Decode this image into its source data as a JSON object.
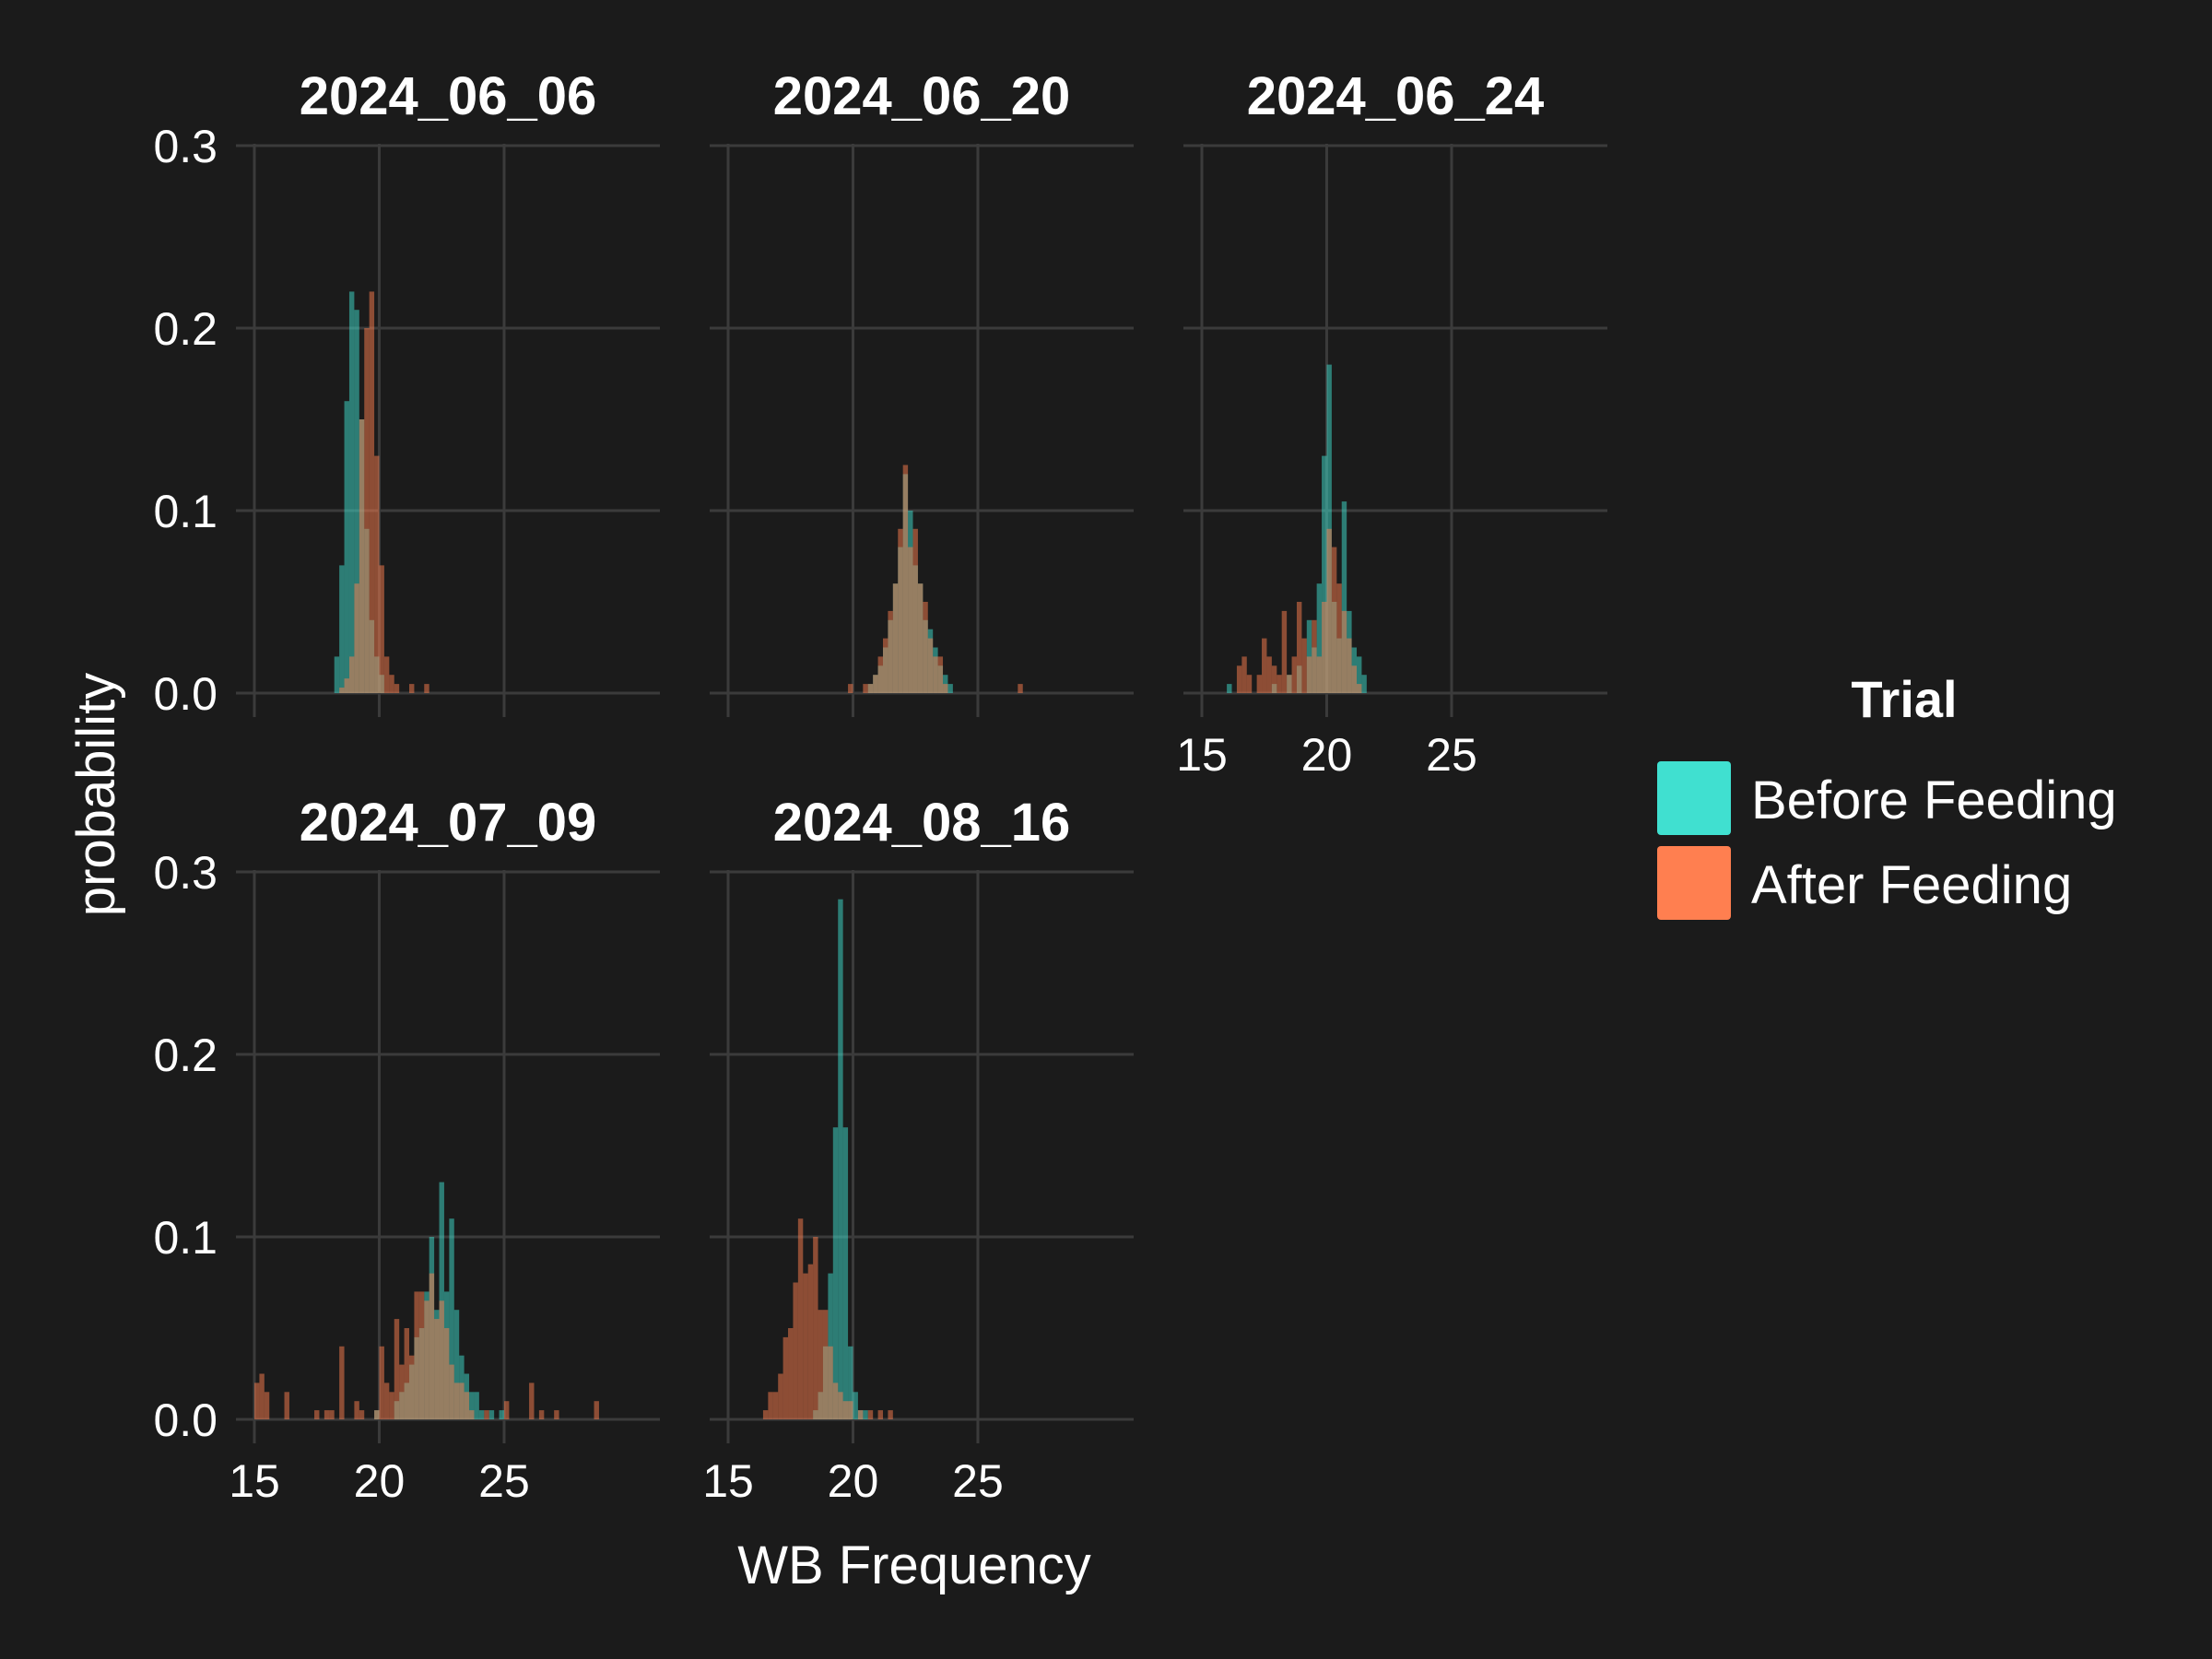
{
  "chart_data": {
    "type": "histogram",
    "xlabel": "WB Frequency",
    "ylabel": "probability",
    "xlim": [
      15,
      30.5
    ],
    "ylim": [
      0,
      0.3
    ],
    "x_ticks": [
      "15",
      "20",
      "25"
    ],
    "y_ticks": [
      "0.0",
      "0.1",
      "0.2",
      "0.3"
    ],
    "bin_width": 0.2,
    "legend": {
      "title": "Trial",
      "position": "right",
      "items": [
        {
          "label": "Before Feeding",
          "color": "#40e0d0"
        },
        {
          "label": "After Feeding",
          "color": "#ff7f50"
        }
      ]
    },
    "colors": {
      "before": "#40e0d0",
      "after": "#ff7f50",
      "bar_opacity": 0.5,
      "background": "#1b1b1b",
      "grid": "#3b3b3b"
    },
    "panels": [
      {
        "title": "2024_06_06",
        "series": [
          {
            "name": "Before Feeding",
            "bins": [
              [
                18.2,
                0.02
              ],
              [
                18.4,
                0.07
              ],
              [
                18.6,
                0.16
              ],
              [
                18.8,
                0.22
              ],
              [
                19.0,
                0.21
              ],
              [
                19.2,
                0.15
              ],
              [
                19.4,
                0.09
              ],
              [
                19.6,
                0.04
              ],
              [
                19.8,
                0.02
              ],
              [
                20.0,
                0.01
              ]
            ]
          },
          {
            "name": "After Feeding",
            "bins": [
              [
                18.4,
                0.003
              ],
              [
                18.6,
                0.008
              ],
              [
                18.8,
                0.02
              ],
              [
                19.0,
                0.06
              ],
              [
                19.2,
                0.15
              ],
              [
                19.4,
                0.2
              ],
              [
                19.6,
                0.22
              ],
              [
                19.8,
                0.13
              ],
              [
                20.0,
                0.07
              ],
              [
                20.2,
                0.02
              ],
              [
                20.4,
                0.01
              ],
              [
                20.6,
                0.005
              ],
              [
                21.2,
                0.005
              ],
              [
                21.8,
                0.005
              ]
            ]
          }
        ]
      },
      {
        "title": "2024_06_20",
        "series": [
          {
            "name": "Before Feeding",
            "bins": [
              [
                20.6,
                0.005
              ],
              [
                20.8,
                0.01
              ],
              [
                21.0,
                0.015
              ],
              [
                21.2,
                0.025
              ],
              [
                21.4,
                0.04
              ],
              [
                21.6,
                0.06
              ],
              [
                21.8,
                0.08
              ],
              [
                22.0,
                0.12
              ],
              [
                22.2,
                0.1
              ],
              [
                22.4,
                0.07
              ],
              [
                22.6,
                0.06
              ],
              [
                22.8,
                0.04
              ],
              [
                23.0,
                0.035
              ],
              [
                23.2,
                0.025
              ],
              [
                23.4,
                0.015
              ],
              [
                23.6,
                0.01
              ],
              [
                23.8,
                0.005
              ]
            ]
          },
          {
            "name": "After Feeding",
            "bins": [
              [
                19.8,
                0.005
              ],
              [
                20.4,
                0.005
              ],
              [
                20.6,
                0.005
              ],
              [
                20.8,
                0.01
              ],
              [
                21.0,
                0.02
              ],
              [
                21.2,
                0.03
              ],
              [
                21.4,
                0.045
              ],
              [
                21.6,
                0.06
              ],
              [
                21.8,
                0.09
              ],
              [
                22.0,
                0.125
              ],
              [
                22.2,
                0.08
              ],
              [
                22.4,
                0.09
              ],
              [
                22.6,
                0.06
              ],
              [
                22.8,
                0.05
              ],
              [
                23.0,
                0.03
              ],
              [
                23.2,
                0.02
              ],
              [
                23.4,
                0.02
              ],
              [
                23.6,
                0.005
              ],
              [
                26.6,
                0.005
              ]
            ]
          }
        ]
      },
      {
        "title": "2024_06_24",
        "series": [
          {
            "name": "Before Feeding",
            "bins": [
              [
                16.0,
                0.005
              ],
              [
                17.8,
                0.005
              ],
              [
                18.4,
                0.01
              ],
              [
                18.8,
                0.015
              ],
              [
                19.2,
                0.04
              ],
              [
                19.4,
                0.025
              ],
              [
                19.6,
                0.06
              ],
              [
                19.8,
                0.13
              ],
              [
                20.0,
                0.18
              ],
              [
                20.2,
                0.05
              ],
              [
                20.4,
                0.03
              ],
              [
                20.6,
                0.105
              ],
              [
                20.8,
                0.045
              ],
              [
                21.0,
                0.025
              ],
              [
                21.2,
                0.02
              ],
              [
                21.4,
                0.01
              ]
            ]
          },
          {
            "name": "After Feeding",
            "bins": [
              [
                16.4,
                0.015
              ],
              [
                16.6,
                0.02
              ],
              [
                16.8,
                0.01
              ],
              [
                17.2,
                0.01
              ],
              [
                17.4,
                0.03
              ],
              [
                17.6,
                0.02
              ],
              [
                17.8,
                0.015
              ],
              [
                18.0,
                0.01
              ],
              [
                18.2,
                0.045
              ],
              [
                18.4,
                0.01
              ],
              [
                18.6,
                0.02
              ],
              [
                18.8,
                0.05
              ],
              [
                19.0,
                0.03
              ],
              [
                19.2,
                0.02
              ],
              [
                19.4,
                0.04
              ],
              [
                19.6,
                0.02
              ],
              [
                19.8,
                0.05
              ],
              [
                20.0,
                0.09
              ],
              [
                20.2,
                0.08
              ],
              [
                20.4,
                0.06
              ],
              [
                20.6,
                0.045
              ],
              [
                20.8,
                0.03
              ],
              [
                21.0,
                0.015
              ],
              [
                21.2,
                0.005
              ]
            ]
          }
        ]
      },
      {
        "title": "2024_07_09",
        "series": [
          {
            "name": "Before Feeding",
            "bins": [
              [
                19.8,
                0.005
              ],
              [
                20.6,
                0.01
              ],
              [
                20.8,
                0.015
              ],
              [
                21.0,
                0.02
              ],
              [
                21.2,
                0.03
              ],
              [
                21.4,
                0.045
              ],
              [
                21.6,
                0.05
              ],
              [
                21.8,
                0.07
              ],
              [
                22.0,
                0.1
              ],
              [
                22.2,
                0.06
              ],
              [
                22.4,
                0.13
              ],
              [
                22.6,
                0.07
              ],
              [
                22.8,
                0.11
              ],
              [
                23.0,
                0.06
              ],
              [
                23.2,
                0.035
              ],
              [
                23.4,
                0.025
              ],
              [
                23.6,
                0.015
              ],
              [
                23.8,
                0.015
              ],
              [
                24.0,
                0.005
              ],
              [
                24.4,
                0.005
              ],
              [
                24.8,
                0.005
              ]
            ]
          },
          {
            "name": "After Feeding",
            "bins": [
              [
                15.0,
                0.02
              ],
              [
                15.2,
                0.025
              ],
              [
                15.4,
                0.015
              ],
              [
                16.2,
                0.015
              ],
              [
                17.4,
                0.005
              ],
              [
                17.8,
                0.005
              ],
              [
                18.0,
                0.005
              ],
              [
                18.4,
                0.04
              ],
              [
                19.0,
                0.01
              ],
              [
                19.2,
                0.005
              ],
              [
                19.8,
                0.005
              ],
              [
                20.0,
                0.04
              ],
              [
                20.2,
                0.02
              ],
              [
                20.4,
                0.015
              ],
              [
                20.6,
                0.055
              ],
              [
                20.8,
                0.03
              ],
              [
                21.0,
                0.05
              ],
              [
                21.2,
                0.035
              ],
              [
                21.4,
                0.07
              ],
              [
                21.6,
                0.07
              ],
              [
                21.8,
                0.065
              ],
              [
                22.0,
                0.08
              ],
              [
                22.2,
                0.055
              ],
              [
                22.4,
                0.065
              ],
              [
                22.6,
                0.05
              ],
              [
                22.8,
                0.03
              ],
              [
                23.0,
                0.02
              ],
              [
                23.2,
                0.02
              ],
              [
                23.4,
                0.015
              ],
              [
                23.6,
                0.005
              ],
              [
                24.2,
                0.005
              ],
              [
                25.0,
                0.01
              ],
              [
                26.0,
                0.02
              ],
              [
                26.4,
                0.005
              ],
              [
                27.0,
                0.005
              ],
              [
                28.6,
                0.01
              ]
            ]
          }
        ]
      },
      {
        "title": "2024_08_16",
        "series": [
          {
            "name": "Before Feeding",
            "bins": [
              [
                18.4,
                0.005
              ],
              [
                18.6,
                0.015
              ],
              [
                18.8,
                0.04
              ],
              [
                19.0,
                0.08
              ],
              [
                19.2,
                0.16
              ],
              [
                19.4,
                0.285
              ],
              [
                19.6,
                0.16
              ],
              [
                19.8,
                0.04
              ],
              [
                20.0,
                0.015
              ],
              [
                20.2,
                0.005
              ],
              [
                20.4,
                0.005
              ]
            ]
          },
          {
            "name": "After Feeding",
            "bins": [
              [
                16.4,
                0.005
              ],
              [
                16.6,
                0.015
              ],
              [
                16.8,
                0.015
              ],
              [
                17.0,
                0.025
              ],
              [
                17.2,
                0.045
              ],
              [
                17.4,
                0.05
              ],
              [
                17.6,
                0.075
              ],
              [
                17.8,
                0.11
              ],
              [
                18.0,
                0.08
              ],
              [
                18.2,
                0.085
              ],
              [
                18.4,
                0.1
              ],
              [
                18.6,
                0.06
              ],
              [
                18.8,
                0.06
              ],
              [
                19.0,
                0.04
              ],
              [
                19.2,
                0.02
              ],
              [
                19.4,
                0.015
              ],
              [
                19.6,
                0.01
              ],
              [
                19.8,
                0.01
              ],
              [
                20.2,
                0.005
              ],
              [
                20.6,
                0.005
              ],
              [
                21.0,
                0.005
              ],
              [
                21.4,
                0.005
              ]
            ]
          }
        ]
      }
    ]
  }
}
